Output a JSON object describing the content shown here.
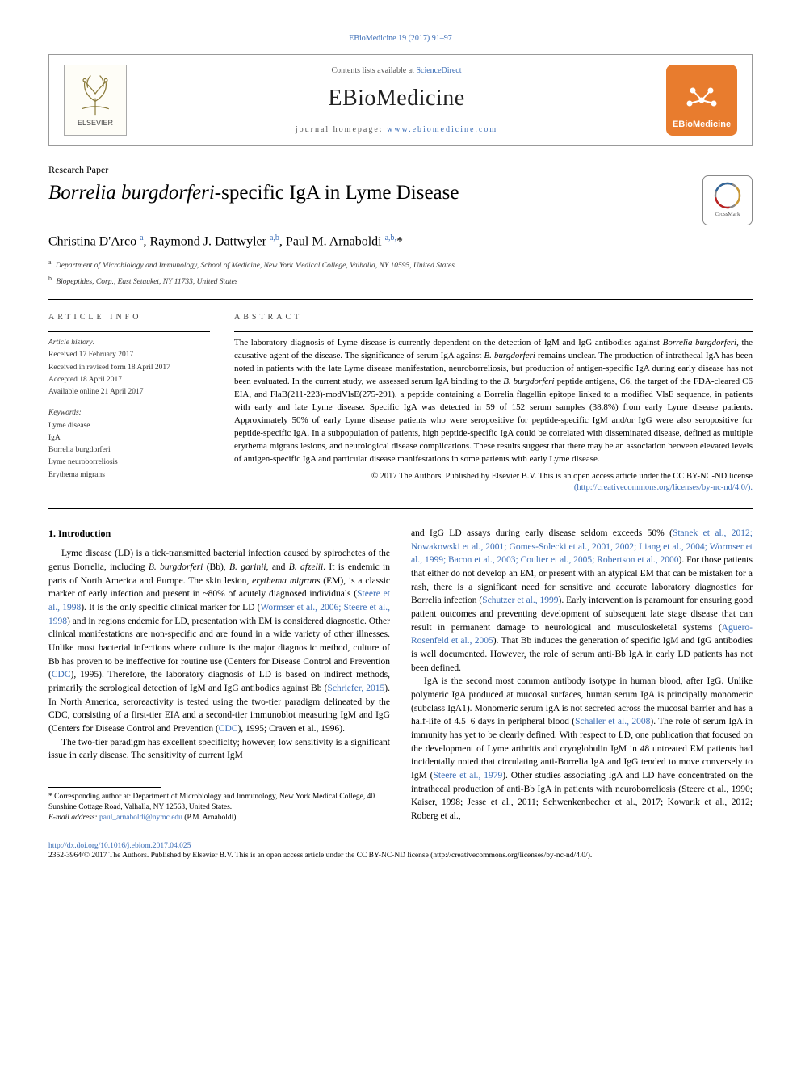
{
  "colors": {
    "link": "#3a6cb5",
    "ebio_bg": "#e87c2e",
    "text": "#000000",
    "muted": "#555555",
    "border": "#999999"
  },
  "typography": {
    "body_font": "Georgia, Times New Roman, serif",
    "body_size_pt": 11.5,
    "title_size_pt": 25,
    "journal_name_size_pt": 28
  },
  "header": {
    "top_line": "EBioMedicine 19 (2017) 91–97",
    "contents_line_prefix": "Contents lists available at ",
    "sciencedirect": "ScienceDirect",
    "journal_name": "EBioMedicine",
    "homepage_prefix": "journal homepage: ",
    "homepage_url": "www.ebiomedicine.com",
    "elsevier_label": "ELSEVIER",
    "ebio_label": "EBioMedicine"
  },
  "paper": {
    "type": "Research Paper",
    "title_italic": "Borrelia burgdorferi",
    "title_rest": "-specific IgA in Lyme Disease",
    "crossmark": "CrossMark",
    "authors_html": "Christina D'Arco <sup>a</sup>, Raymond J. Dattwyler <sup>a,b</sup>, Paul M. Arnaboldi <sup>a,b,</sup>*",
    "affiliations": [
      {
        "sup": "a",
        "text": "Department of Microbiology and Immunology, School of Medicine, New York Medical College, Valhalla, NY 10595, United States"
      },
      {
        "sup": "b",
        "text": "Biopeptides, Corp., East Setauket, NY 11733, United States"
      }
    ]
  },
  "article_info": {
    "label": "ARTICLE INFO",
    "history_label": "Article history:",
    "history": [
      "Received 17 February 2017",
      "Received in revised form 18 April 2017",
      "Accepted 18 April 2017",
      "Available online 21 April 2017"
    ],
    "keywords_label": "Keywords:",
    "keywords": [
      "Lyme disease",
      "IgA",
      "Borrelia burgdorferi",
      "Lyme neuroborreliosis",
      "Erythema migrans"
    ]
  },
  "abstract": {
    "label": "ABSTRACT",
    "text": "The laboratory diagnosis of Lyme disease is currently dependent on the detection of IgM and IgG antibodies against Borrelia burgdorferi, the causative agent of the disease. The significance of serum IgA against B. burgdorferi remains unclear. The production of intrathecal IgA has been noted in patients with the late Lyme disease manifestation, neuroborreliosis, but production of antigen-specific IgA during early disease has not been evaluated. In the current study, we assessed serum IgA binding to the B. burgdorferi peptide antigens, C6, the target of the FDA-cleared C6 EIA, and FlaB(211-223)-modVlsE(275-291), a peptide containing a Borrelia flagellin epitope linked to a modified VlsE sequence, in patients with early and late Lyme disease. Specific IgA was detected in 59 of 152 serum samples (38.8%) from early Lyme disease patients. Approximately 50% of early Lyme disease patients who were seropositive for peptide-specific IgM and/or IgG were also seropositive for peptide-specific IgA. In a subpopulation of patients, high peptide-specific IgA could be correlated with disseminated disease, defined as multiple erythema migrans lesions, and neurological disease complications. These results suggest that there may be an association between elevated levels of antigen-specific IgA and particular disease manifestations in some patients with early Lyme disease.",
    "copyright": "© 2017 The Authors. Published by Elsevier B.V. This is an open access article under the CC BY-NC-ND license",
    "license_url": "(http://creativecommons.org/licenses/by-nc-nd/4.0/)."
  },
  "body": {
    "intro_heading": "1. Introduction",
    "p1": "Lyme disease (LD) is a tick-transmitted bacterial infection caused by spirochetes of the genus Borrelia, including B. burgdorferi (Bb), B. garinii, and B. afzelii. It is endemic in parts of North America and Europe. The skin lesion, erythema migrans (EM), is a classic marker of early infection and present in ~80% of acutely diagnosed individuals (Steere et al., 1998). It is the only specific clinical marker for LD (Wormser et al., 2006; Steere et al., 1998) and in regions endemic for LD, presentation with EM is considered diagnostic. Other clinical manifestations are non-specific and are found in a wide variety of other illnesses. Unlike most bacterial infections where culture is the major diagnostic method, culture of Bb has proven to be ineffective for routine use (Centers for Disease Control and Prevention (CDC), 1995). Therefore, the laboratory diagnosis of LD is based on indirect methods, primarily the serological detection of IgM and IgG antibodies against Bb (Schriefer, 2015). In North America, seroreactivity is tested using the two-tier paradigm delineated by the CDC, consisting of a first-tier EIA and a second-tier immunoblot measuring IgM and IgG (Centers for Disease Control and Prevention (CDC), 1995; Craven et al., 1996).",
    "p2": "The two-tier paradigm has excellent specificity; however, low sensitivity is a significant issue in early disease. The sensitivity of current IgM",
    "p3": "and IgG LD assays during early disease seldom exceeds 50% (Stanek et al., 2012; Nowakowski et al., 2001; Gomes-Solecki et al., 2001, 2002; Liang et al., 2004; Wormser et al., 1999; Bacon et al., 2003; Coulter et al., 2005; Robertson et al., 2000). For those patients that either do not develop an EM, or present with an atypical EM that can be mistaken for a rash, there is a significant need for sensitive and accurate laboratory diagnostics for Borrelia infection (Schutzer et al., 1999). Early intervention is paramount for ensuring good patient outcomes and preventing development of subsequent late stage disease that can result in permanent damage to neurological and musculoskeletal systems (Aguero-Rosenfeld et al., 2005). That Bb induces the generation of specific IgM and IgG antibodies is well documented. However, the role of serum anti-Bb IgA in early LD patients has not been defined.",
    "p4": "IgA is the second most common antibody isotype in human blood, after IgG. Unlike polymeric IgA produced at mucosal surfaces, human serum IgA is principally monomeric (subclass IgA1). Monomeric serum IgA is not secreted across the mucosal barrier and has a half-life of 4.5–6 days in peripheral blood (Schaller et al., 2008). The role of serum IgA in immunity has yet to be clearly defined. With respect to LD, one publication that focused on the development of Lyme arthritis and cryoglobulin IgM in 48 untreated EM patients had incidentally noted that circulating anti-Borrelia IgA and IgG tended to move conversely to IgM (Steere et al., 1979). Other studies associating IgA and LD have concentrated on the intrathecal production of anti-Bb IgA in patients with neuroborreliosis (Steere et al., 1990; Kaiser, 1998; Jesse et al., 2011; Schwenkenbecher et al., 2017; Kowarik et al., 2012; Roberg et al.,"
  },
  "footnote": {
    "corr_label": "* Corresponding author at:",
    "corr_text": " Department of Microbiology and Immunology, New York Medical College, 40 Sunshine Cottage Road, Valhalla, NY 12563, United States.",
    "email_label": "E-mail address: ",
    "email": "paul_arnaboldi@nymc.edu",
    "email_suffix": " (P.M. Arnaboldi)."
  },
  "footer": {
    "doi": "http://dx.doi.org/10.1016/j.ebiom.2017.04.025",
    "line2": "2352-3964/© 2017 The Authors. Published by Elsevier B.V. This is an open access article under the CC BY-NC-ND license (http://creativecommons.org/licenses/by-nc-nd/4.0/)."
  }
}
